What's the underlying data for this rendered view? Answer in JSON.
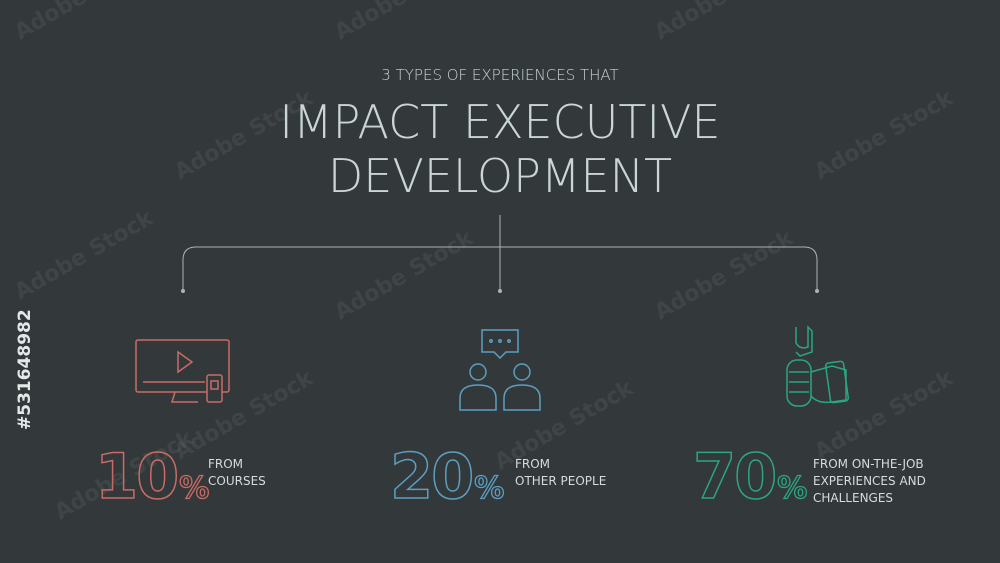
{
  "header": {
    "subtitle": "3 TYPES OF EXPERIENCES THAT",
    "title_lines": [
      "IMPACT EXECUTIVE",
      "DEVELOPMENT"
    ]
  },
  "items": [
    {
      "value": "10",
      "unit": "%",
      "label_lines": [
        "FROM",
        "COURSES"
      ],
      "color": "#c96b66"
    },
    {
      "value": "20",
      "unit": "%",
      "label_lines": [
        "FROM",
        "OTHER PEOPLE"
      ],
      "color": "#5b9fc2"
    },
    {
      "value": "70",
      "unit": "%",
      "label_lines": [
        "FROM ON-THE-JOB",
        "EXPERIENCES AND",
        "CHALLENGES"
      ],
      "color": "#2ba67f"
    }
  ],
  "watermark": "Adobe Stock",
  "stock_id": "#531648982"
}
